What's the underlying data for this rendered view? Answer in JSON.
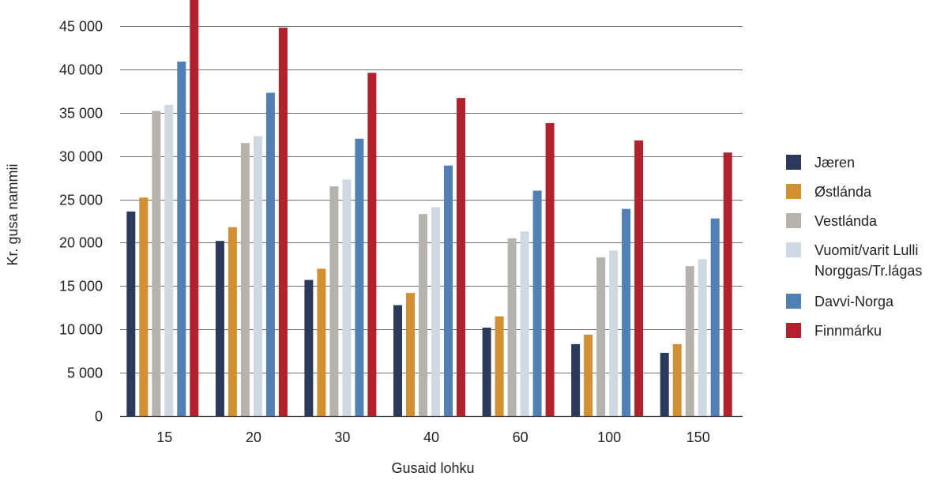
{
  "chart_data": {
    "type": "bar",
    "xlabel": "Gusaid lohku",
    "ylabel": "Kr. gusa nammii",
    "ylim": [
      0,
      48000
    ],
    "yticks": [
      0,
      5000,
      10000,
      15000,
      20000,
      25000,
      30000,
      35000,
      40000,
      45000
    ],
    "ytick_labels": [
      "0",
      "5 000",
      "10 000",
      "15 000",
      "20 000",
      "25 000",
      "30 000",
      "35 000",
      "40 000",
      "45 000"
    ],
    "grid": true,
    "legend_position": "right",
    "categories": [
      "15",
      "20",
      "30",
      "40",
      "60",
      "100",
      "150"
    ],
    "series": [
      {
        "name": "Jæren",
        "color": "#2b3a5c",
        "values": [
          23600,
          20200,
          15700,
          12800,
          10200,
          8300,
          7300
        ]
      },
      {
        "name": "Østlánda",
        "color": "#d48f2e",
        "values": [
          25200,
          21800,
          17000,
          14200,
          11500,
          9400,
          8300
        ]
      },
      {
        "name": "Vestlánda",
        "color": "#b6b3ad",
        "values": [
          35200,
          31500,
          26500,
          23300,
          20500,
          18300,
          17300
        ]
      },
      {
        "name": "Vuomit/varit Lulli Norggas/Tr.lágas",
        "color": "#cfd9e4",
        "values": [
          35900,
          32300,
          27300,
          24100,
          21300,
          19100,
          18100
        ]
      },
      {
        "name": "Davvi-Norga",
        "color": "#5080b8",
        "values": [
          40900,
          37300,
          32000,
          28900,
          26000,
          23900,
          22800
        ]
      },
      {
        "name": "Finnmárku",
        "color": "#b3222c",
        "values": [
          48900,
          44800,
          39600,
          36700,
          33800,
          31800,
          30400
        ]
      }
    ]
  }
}
